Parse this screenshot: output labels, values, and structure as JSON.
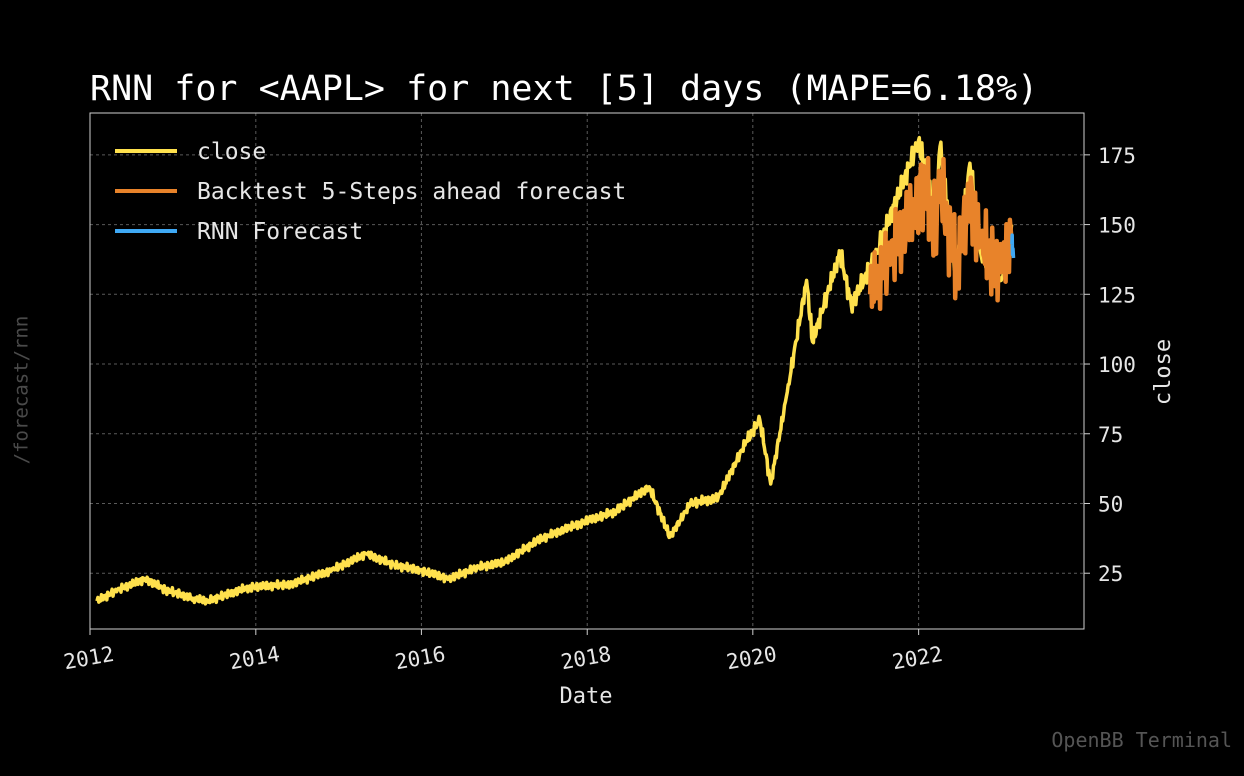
{
  "side_label": "/forecast/rnn",
  "watermark": "OpenBB Terminal",
  "chart_data": {
    "type": "line",
    "title": "RNN for <AAPL> for next [5] days (MAPE=6.18%)",
    "xlabel": "Date",
    "ylabel": "close",
    "x_ticks": [
      "2012",
      "2014",
      "2016",
      "2018",
      "2020",
      "2022"
    ],
    "y_ticks": [
      25,
      50,
      75,
      100,
      125,
      150,
      175
    ],
    "xlim": [
      "2012-01-01",
      "2023-12-31"
    ],
    "ylim": [
      5,
      190
    ],
    "grid": true,
    "legend_position": "top-left",
    "series": [
      {
        "name": "close",
        "color": "#ffe14d",
        "points": [
          [
            "2012-02-01",
            15
          ],
          [
            "2012-05-01",
            19
          ],
          [
            "2012-09-01",
            23
          ],
          [
            "2012-12-01",
            19
          ],
          [
            "2013-04-01",
            16
          ],
          [
            "2013-06-01",
            15
          ],
          [
            "2013-12-01",
            20
          ],
          [
            "2014-06-01",
            21
          ],
          [
            "2014-12-01",
            26
          ],
          [
            "2015-05-01",
            32
          ],
          [
            "2015-09-01",
            28
          ],
          [
            "2016-01-01",
            26
          ],
          [
            "2016-05-01",
            23
          ],
          [
            "2016-09-01",
            27
          ],
          [
            "2017-01-01",
            29
          ],
          [
            "2017-06-01",
            37
          ],
          [
            "2017-12-01",
            43
          ],
          [
            "2018-05-01",
            47
          ],
          [
            "2018-10-01",
            56
          ],
          [
            "2019-01-01",
            38
          ],
          [
            "2019-04-01",
            50
          ],
          [
            "2019-08-01",
            52
          ],
          [
            "2019-12-01",
            72
          ],
          [
            "2020-02-01",
            80
          ],
          [
            "2020-03-20",
            57
          ],
          [
            "2020-06-01",
            90
          ],
          [
            "2020-08-25",
            130
          ],
          [
            "2020-09-20",
            108
          ],
          [
            "2021-01-20",
            140
          ],
          [
            "2021-03-10",
            121
          ],
          [
            "2021-07-01",
            140
          ],
          [
            "2021-12-31",
            180
          ],
          [
            "2022-03-15",
            155
          ],
          [
            "2022-04-05",
            178
          ],
          [
            "2022-06-15",
            132
          ],
          [
            "2022-08-15",
            172
          ],
          [
            "2022-10-01",
            140
          ],
          [
            "2022-12-31",
            130
          ],
          [
            "2023-02-15",
            150
          ]
        ]
      },
      {
        "name": "Backtest 5-Steps ahead forecast",
        "color": "#e8832a",
        "points": [
          [
            "2021-06-01",
            125
          ],
          [
            "2021-09-01",
            140
          ],
          [
            "2021-12-15",
            155
          ],
          [
            "2022-01-15",
            165
          ],
          [
            "2022-03-15",
            150
          ],
          [
            "2022-04-05",
            165
          ],
          [
            "2022-06-15",
            135
          ],
          [
            "2022-08-15",
            160
          ],
          [
            "2022-10-01",
            143
          ],
          [
            "2022-12-31",
            133
          ],
          [
            "2023-02-15",
            145
          ]
        ]
      },
      {
        "name": "RNN Forecast",
        "color": "#3fa9f5",
        "points": [
          [
            "2023-02-16",
            143
          ],
          [
            "2023-02-20",
            141
          ],
          [
            "2023-02-23",
            138
          ]
        ]
      }
    ]
  }
}
